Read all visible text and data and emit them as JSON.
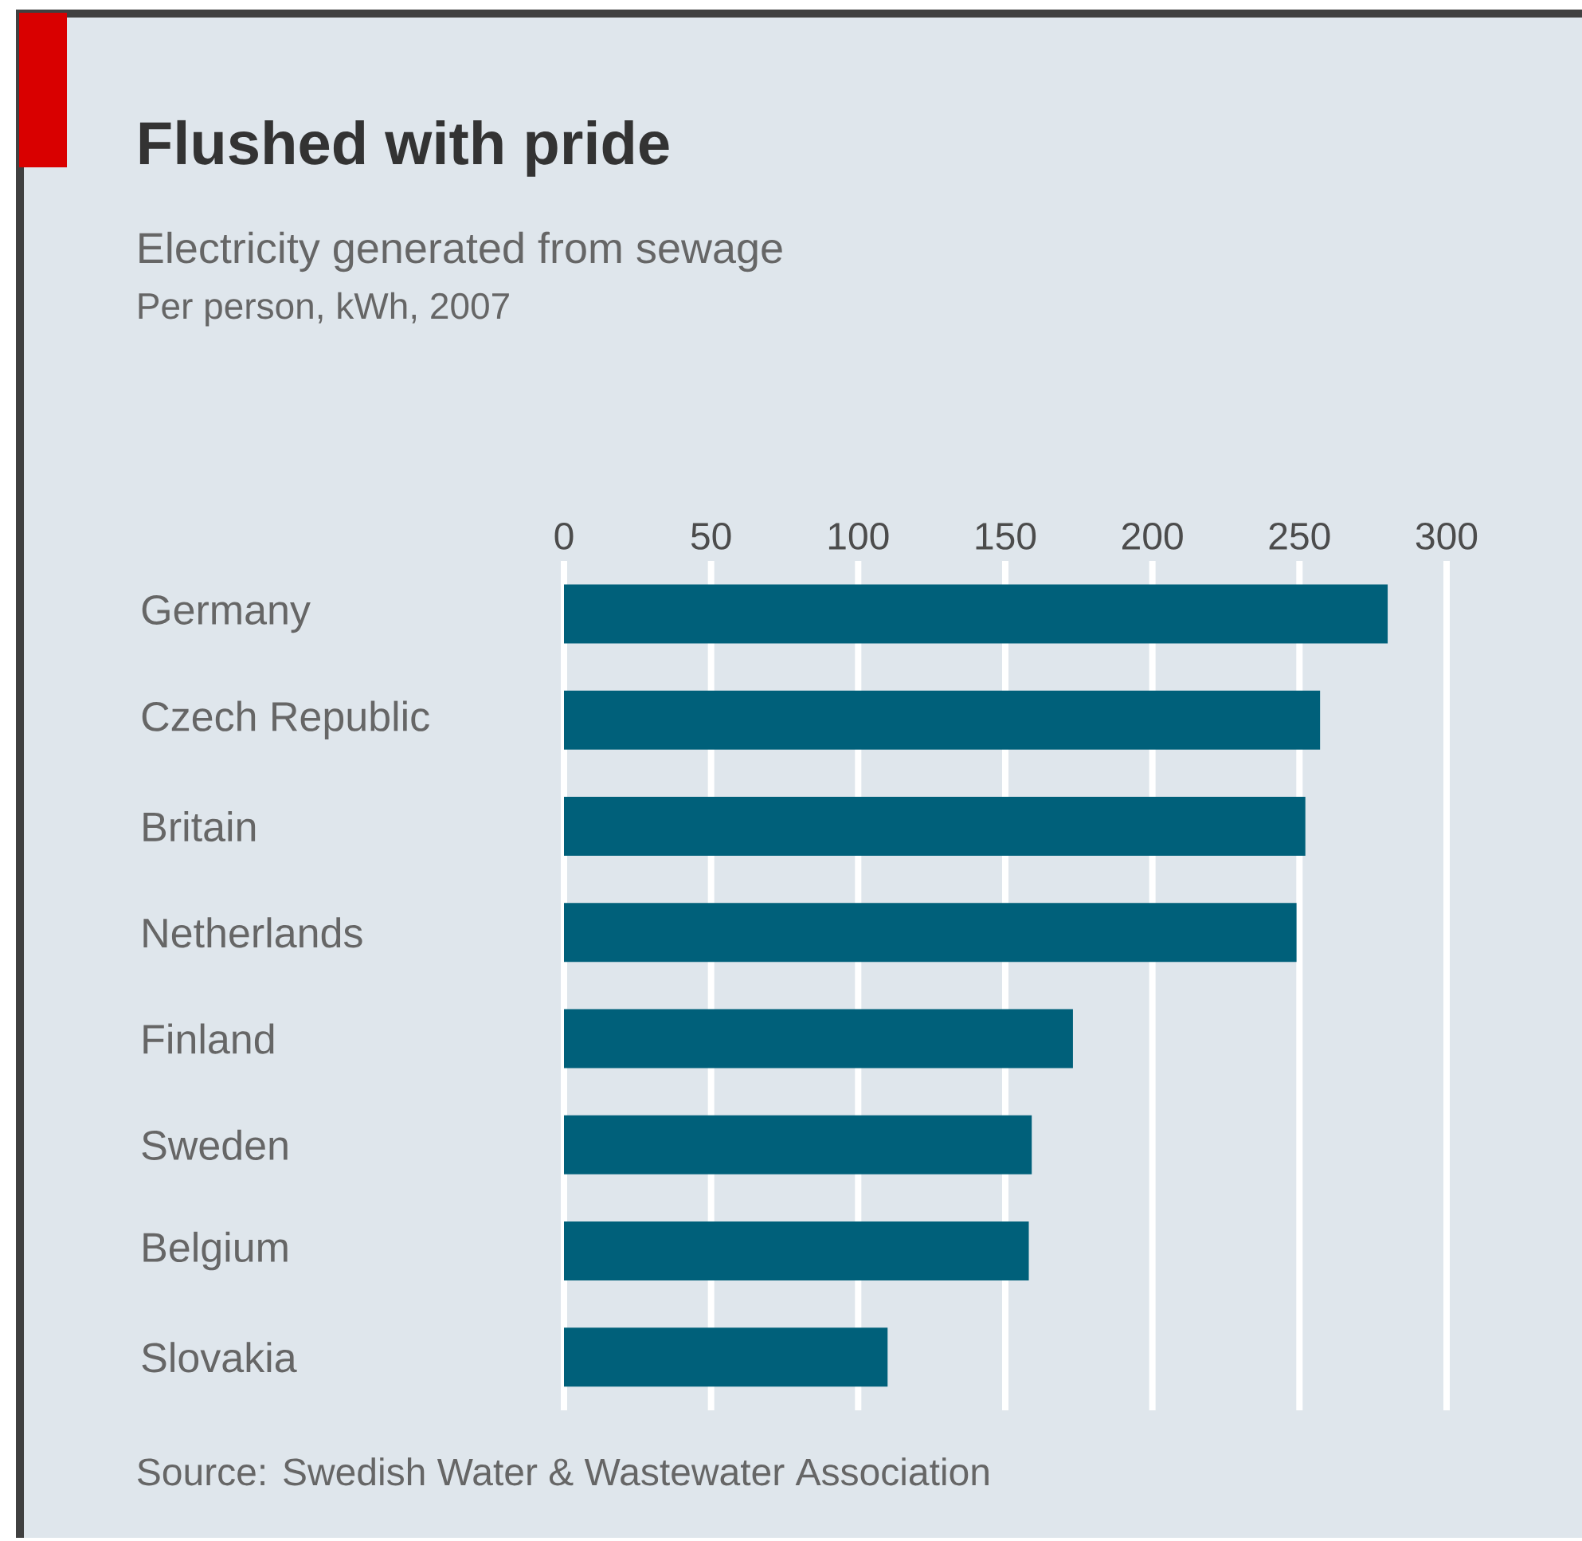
{
  "chart_data": {
    "type": "bar",
    "orientation": "horizontal",
    "title": "Flushed with pride",
    "subtitle": "Electricity generated from sewage",
    "annotations": [
      "Per person, kWh, 2007",
      "Source: Swedish Water & Wastewater Association"
    ],
    "categories": [
      "Germany",
      "Czech Republic",
      "Britain",
      "Netherlands",
      "Finland",
      "Sweden",
      "Belgium",
      "Slovakia"
    ],
    "values": [
      280,
      257,
      252,
      249,
      173,
      159,
      158,
      110
    ],
    "color": "#00607a",
    "xlim": [
      0,
      300
    ],
    "xticks": [
      0,
      50,
      100,
      150,
      200,
      250,
      300
    ],
    "grid": "x"
  }
}
